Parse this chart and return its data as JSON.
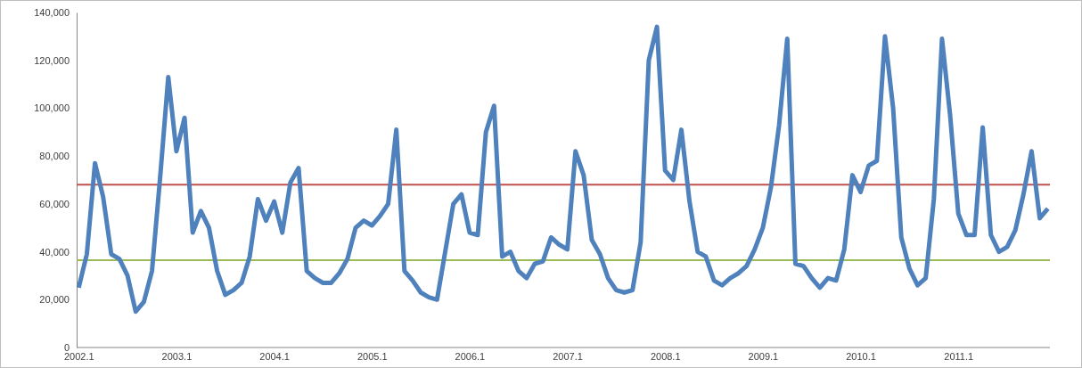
{
  "chart_data": {
    "type": "line",
    "categories": [
      "2002.1",
      null,
      null,
      null,
      null,
      null,
      null,
      null,
      null,
      null,
      null,
      null,
      "2003.1",
      null,
      null,
      null,
      null,
      null,
      null,
      null,
      null,
      null,
      null,
      null,
      "2004.1",
      null,
      null,
      null,
      null,
      null,
      null,
      null,
      null,
      null,
      null,
      null,
      "2005.1",
      null,
      null,
      null,
      null,
      null,
      null,
      null,
      null,
      null,
      null,
      null,
      "2006.1",
      null,
      null,
      null,
      null,
      null,
      null,
      null,
      null,
      null,
      null,
      null,
      "2007.1",
      null,
      null,
      null,
      null,
      null,
      null,
      null,
      null,
      null,
      null,
      null,
      "2008.1",
      null,
      null,
      null,
      null,
      null,
      null,
      null,
      null,
      null,
      null,
      null,
      "2009.1",
      null,
      null,
      null,
      null,
      null,
      null,
      null,
      null,
      null,
      null,
      null,
      "2010.1",
      null,
      null,
      null,
      null,
      null,
      null,
      null,
      null,
      null,
      null,
      null,
      "2011.1",
      null,
      null,
      null,
      null,
      null,
      null,
      null,
      null,
      null,
      null,
      null
    ],
    "series": [
      {
        "color": "#4f81bd",
        "values": [
          25000,
          39000,
          77000,
          63000,
          39000,
          37000,
          30000,
          15000,
          19000,
          32000,
          71000,
          113000,
          82000,
          96000,
          48000,
          57000,
          50000,
          32000,
          22000,
          24000,
          27000,
          38000,
          62000,
          53000,
          61000,
          48000,
          69000,
          75000,
          32000,
          29000,
          27000,
          27000,
          31000,
          37000,
          50000,
          53000,
          51000,
          55000,
          60000,
          91000,
          32000,
          28000,
          23000,
          21000,
          20000,
          40000,
          60000,
          64000,
          48000,
          47000,
          90000,
          101000,
          38000,
          40000,
          32000,
          29000,
          35000,
          36000,
          46000,
          43000,
          41000,
          82000,
          72000,
          45000,
          39000,
          29000,
          24000,
          23000,
          24000,
          44000,
          120000,
          134000,
          74000,
          70000,
          91000,
          61000,
          40000,
          38000,
          28000,
          26000,
          29000,
          31000,
          34000,
          41000,
          50000,
          67000,
          93000,
          129000,
          35000,
          34000,
          29000,
          25000,
          29000,
          28000,
          41000,
          72000,
          65000,
          76000,
          78000,
          130000,
          100000,
          46000,
          33000,
          26000,
          29000,
          62000,
          129000,
          97000,
          56000,
          47000,
          47000,
          92000,
          47000,
          40000,
          42000,
          49000,
          64000,
          82000,
          54000,
          58000
        ]
      }
    ],
    "ylim": [
      0,
      140000
    ],
    "yticks": [
      0,
      {
        "value": 20000,
        "label": "20,000"
      },
      {
        "value": 40000,
        "label": "40,000"
      },
      {
        "value": 60000,
        "label": "60,000"
      },
      {
        "value": 80000,
        "label": "80,000"
      },
      {
        "value": 100000,
        "label": "100,000"
      },
      {
        "value": 120000,
        "label": "120,000"
      },
      {
        "value": 140000,
        "label": "140,000"
      }
    ],
    "ref_lines": [
      {
        "axis": "y",
        "value": 68000,
        "color": "#c0504d"
      },
      {
        "axis": "y",
        "value": 36500,
        "color": "#9bbb59"
      }
    ],
    "grid": false,
    "marker": "none",
    "line_style": "solid"
  }
}
